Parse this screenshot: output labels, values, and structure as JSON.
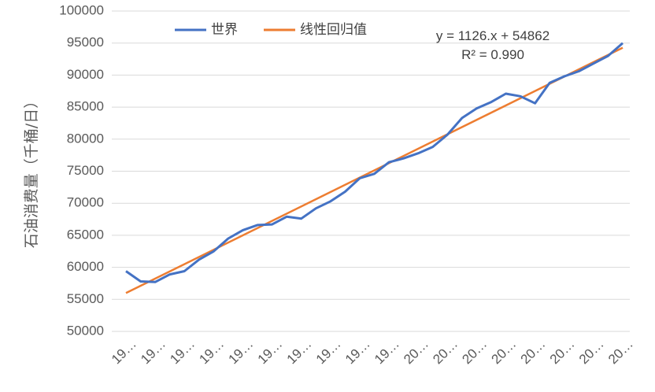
{
  "chart_data": {
    "type": "line",
    "ylabel": "石油消费量（千桶/日）",
    "ylim": [
      50000,
      100000
    ],
    "ytick_step": 5000,
    "grid": true,
    "legend_placement": "top",
    "x_tick_labels": [
      "19…",
      "19…",
      "19…",
      "19…",
      "19…",
      "19…",
      "19…",
      "19…",
      "19…",
      "19…",
      "20…",
      "20…",
      "20…",
      "20…",
      "20…",
      "20…",
      "20…",
      "20…"
    ],
    "series": [
      {
        "name": "世界",
        "color": "#4472c4",
        "values": [
          59400,
          57800,
          57700,
          58900,
          59400,
          61200,
          62500,
          64500,
          65800,
          66600,
          66700,
          67900,
          67600,
          69200,
          70300,
          71800,
          73900,
          74600,
          76400,
          77000,
          77800,
          78800,
          80700,
          83300,
          84800,
          85800,
          87100,
          86700,
          85600,
          88800,
          89800,
          90600,
          91800,
          93000,
          95000
        ]
      },
      {
        "name": "线性回归值",
        "color": "#ed7d31",
        "trendline": true
      }
    ],
    "trend": {
      "slope": 1126,
      "intercept": 54862
    },
    "annotations": [
      "y = 1126.x + 54862",
      "R² = 0.990"
    ]
  }
}
